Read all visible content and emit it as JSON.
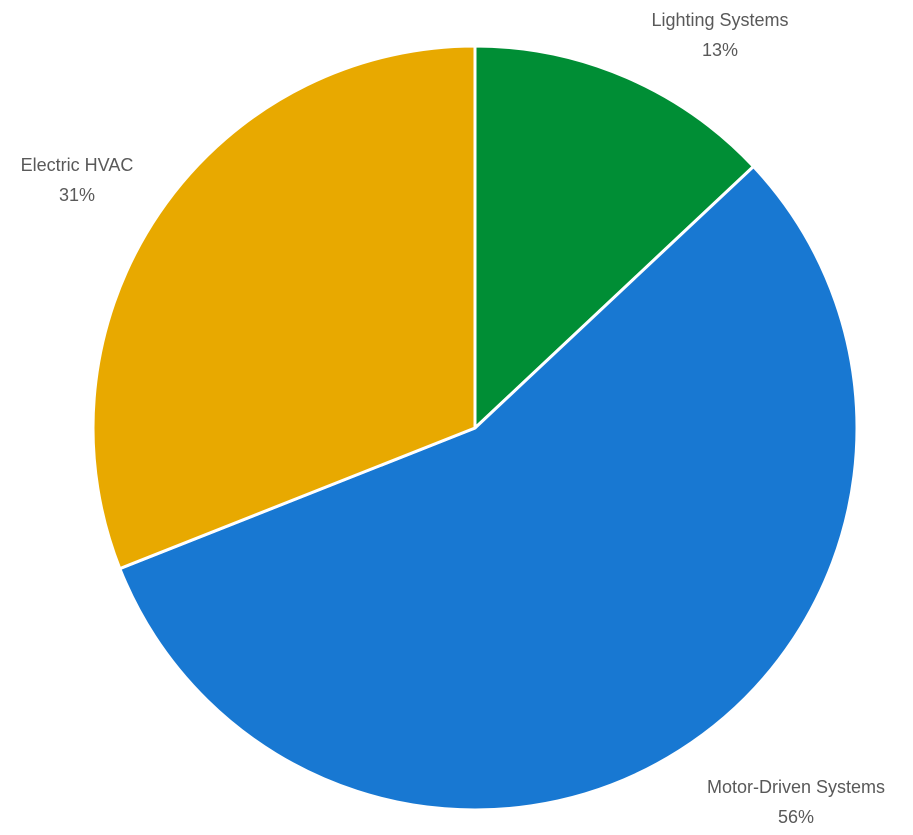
{
  "chart_data": {
    "type": "pie",
    "start_angle_deg": 0,
    "direction": "clockwise",
    "slices": [
      {
        "label": "Lighting Systems",
        "value": 13,
        "value_label": "13%",
        "color": "#008E35"
      },
      {
        "label": "Motor-Driven Systems",
        "value": 56,
        "value_label": "56%",
        "color": "#1878D2"
      },
      {
        "label": "Electric HVAC",
        "value": 31,
        "value_label": "31%",
        "color": "#E8A900"
      }
    ],
    "label_text_color": "#595959",
    "background_color": "#FFFFFF"
  }
}
